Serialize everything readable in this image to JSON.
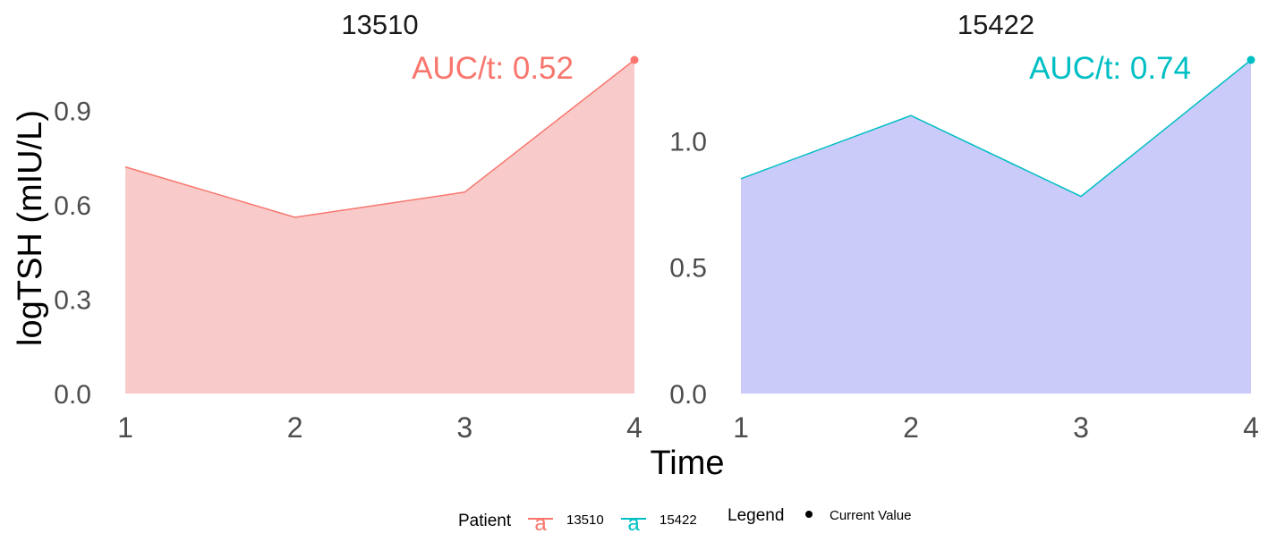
{
  "chart_data": {
    "type": "area",
    "xlabel": "Time",
    "ylabel": "logTSH (mIU/L)",
    "x_ticks": [
      "1",
      "2",
      "3",
      "4"
    ],
    "panels": [
      {
        "title": "13510",
        "annotation": "AUC/t: 0.52",
        "color": "#F8766D",
        "fill": "#F8CBCA",
        "ylim": [
          0,
          1.06
        ],
        "y_ticks": [
          "0.0",
          "0.3",
          "0.6",
          "0.9"
        ],
        "y_tick_values": [
          0,
          0.3,
          0.6,
          0.9
        ],
        "x": [
          1,
          2,
          3,
          4
        ],
        "y": [
          0.72,
          0.56,
          0.64,
          1.06
        ],
        "current_value": {
          "x": 4,
          "y": 1.06
        }
      },
      {
        "title": "15422",
        "annotation": "AUC/t: 0.74",
        "color": "#00BFC4",
        "fill": "#CBCBFA",
        "ylim": [
          0,
          1.32
        ],
        "y_ticks": [
          "0.0",
          "0.5",
          "1.0"
        ],
        "y_tick_values": [
          0,
          0.5,
          1.0
        ],
        "x": [
          1,
          2,
          3,
          4
        ],
        "y": [
          0.85,
          1.1,
          0.78,
          1.32
        ],
        "current_value": {
          "x": 4,
          "y": 1.32
        }
      }
    ],
    "legend": {
      "patient_title": "Patient",
      "patient_entries": [
        {
          "label": "13510",
          "color": "#F8766D",
          "glyph": "a"
        },
        {
          "label": "15422",
          "color": "#00BFC4",
          "glyph": "a"
        }
      ],
      "legend_title": "Legend",
      "legend_entries": [
        {
          "label": "Current Value",
          "color": "#000000"
        }
      ],
      "position": "bottom"
    },
    "grid": false
  }
}
